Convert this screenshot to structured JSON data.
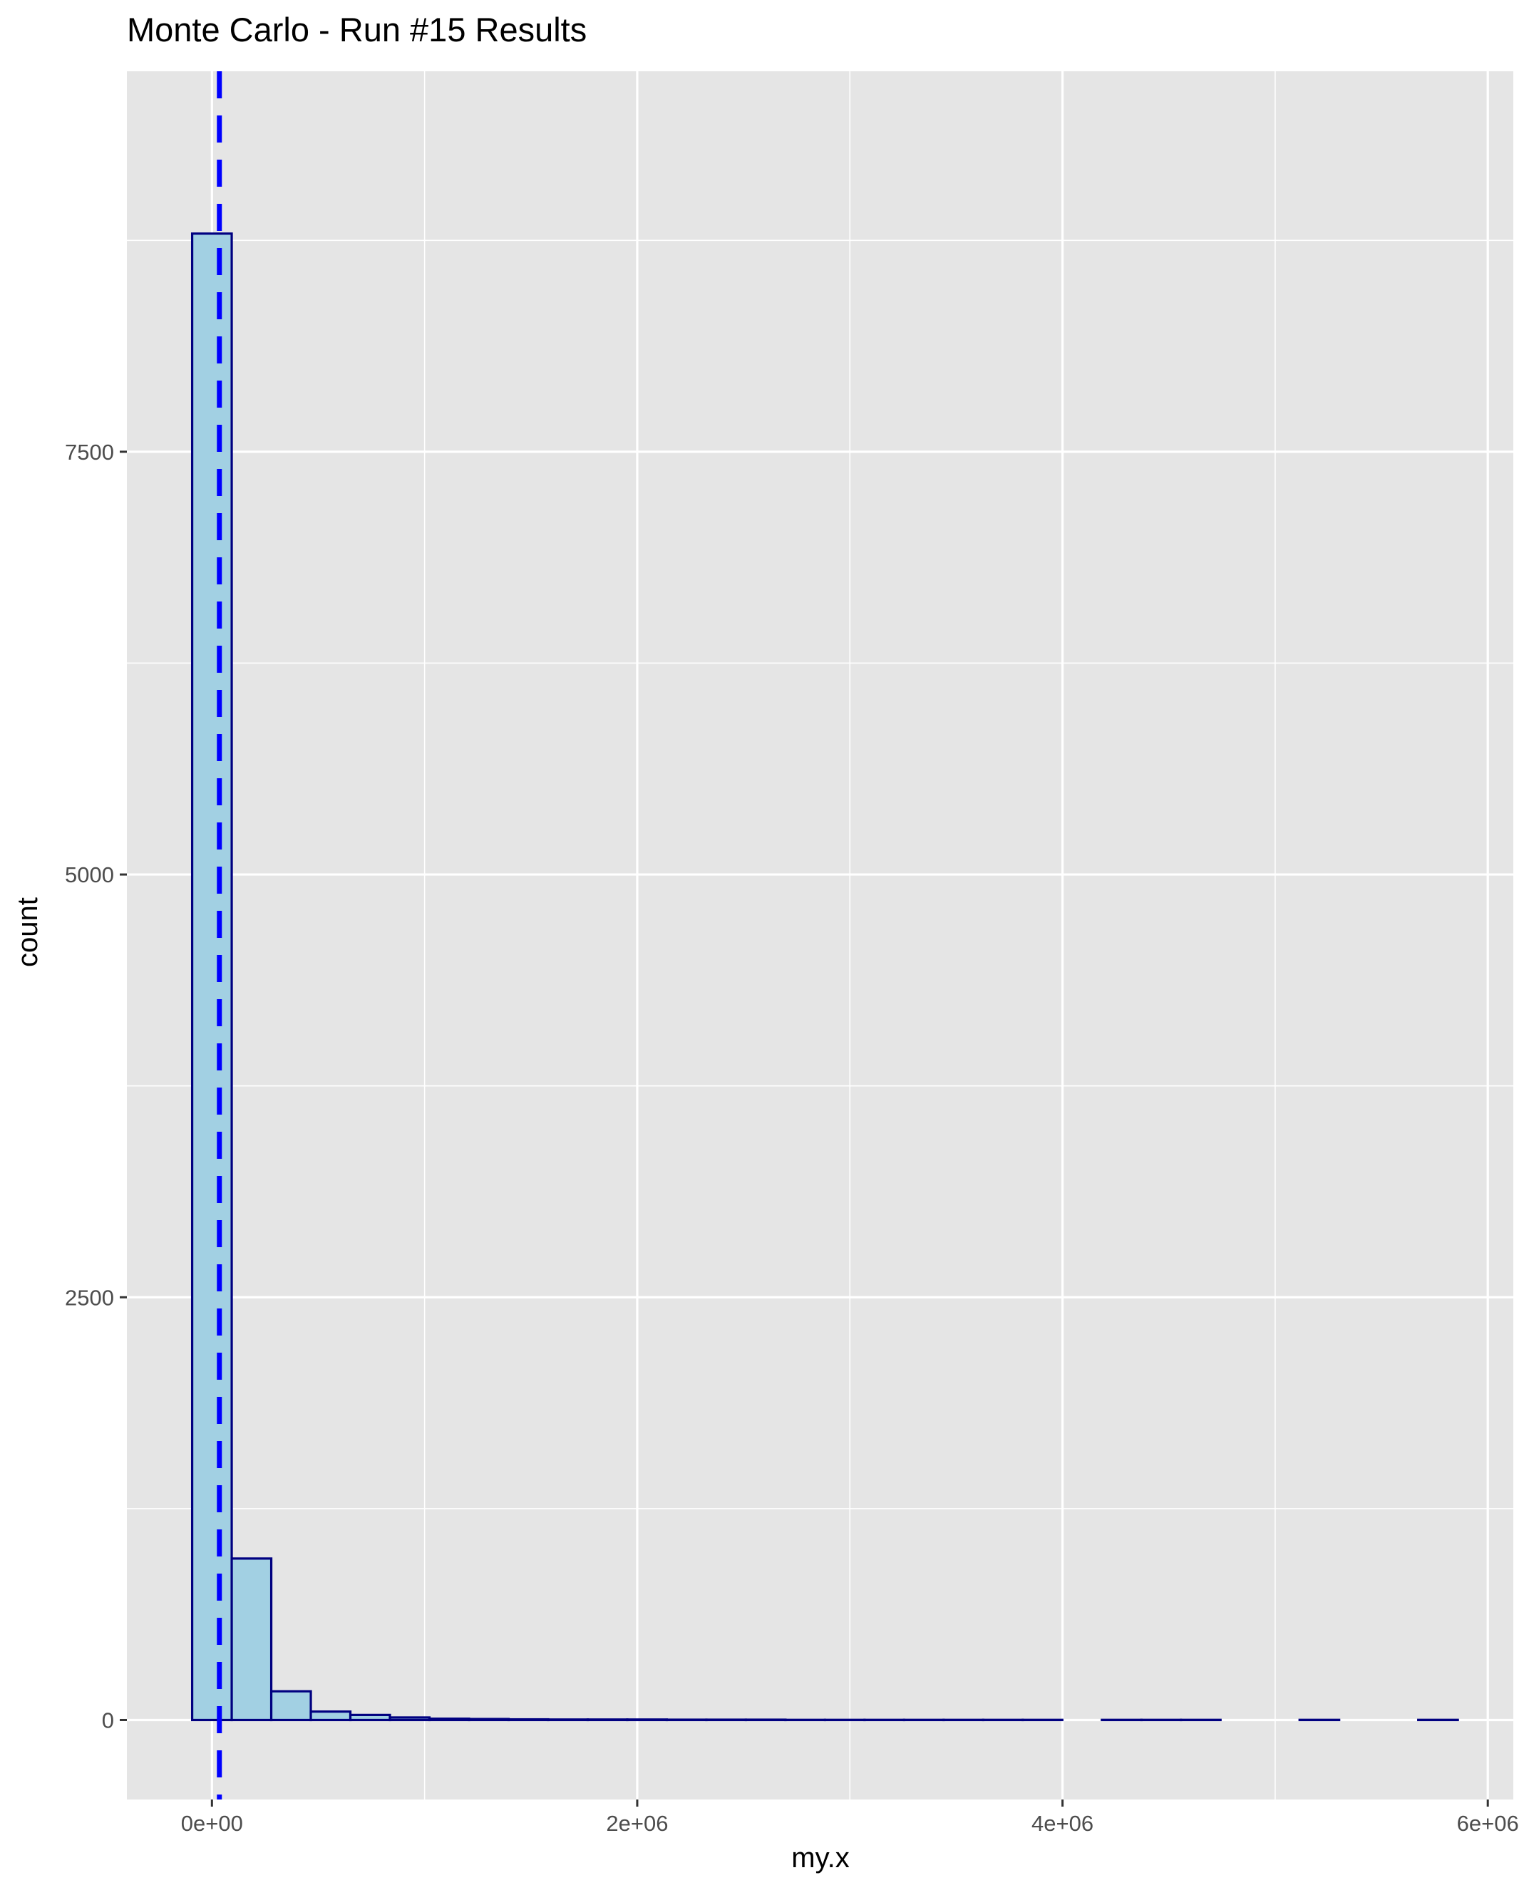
{
  "chart_data": {
    "type": "bar",
    "title": "Monte Carlo - Run #15 Results",
    "xlabel": "my.x",
    "ylabel": "count",
    "xlim": [
      -400000,
      6120000
    ],
    "ylim": [
      -470,
      9750
    ],
    "x_ticks": [
      0,
      2000000,
      4000000,
      6000000
    ],
    "x_tick_labels": [
      "0e+00",
      "2e+06",
      "4e+06",
      "6e+06"
    ],
    "y_ticks": [
      0,
      2500,
      5000,
      7500
    ],
    "y_tick_labels": [
      "0",
      "2500",
      "5000",
      "7500"
    ],
    "grid": true,
    "bin_width": 186000,
    "bins": [
      {
        "x0": -93000,
        "x1": 93000,
        "count": 8790
      },
      {
        "x0": 93000,
        "x1": 279000,
        "count": 955
      },
      {
        "x0": 279000,
        "x1": 465000,
        "count": 170
      },
      {
        "x0": 465000,
        "x1": 651000,
        "count": 50
      },
      {
        "x0": 651000,
        "x1": 837000,
        "count": 30
      },
      {
        "x0": 837000,
        "x1": 1023000,
        "count": 15
      },
      {
        "x0": 1023000,
        "x1": 1209000,
        "count": 8
      },
      {
        "x0": 1209000,
        "x1": 1395000,
        "count": 6
      },
      {
        "x0": 1395000,
        "x1": 1581000,
        "count": 4
      },
      {
        "x0": 1581000,
        "x1": 1767000,
        "count": 3
      },
      {
        "x0": 1767000,
        "x1": 1953000,
        "count": 3
      },
      {
        "x0": 1953000,
        "x1": 2139000,
        "count": 3
      },
      {
        "x0": 2139000,
        "x1": 2325000,
        "count": 2
      },
      {
        "x0": 2325000,
        "x1": 2511000,
        "count": 2
      },
      {
        "x0": 2511000,
        "x1": 2697000,
        "count": 2
      },
      {
        "x0": 2697000,
        "x1": 2883000,
        "count": 1
      },
      {
        "x0": 2883000,
        "x1": 3069000,
        "count": 1
      },
      {
        "x0": 3069000,
        "x1": 3255000,
        "count": 1
      },
      {
        "x0": 3255000,
        "x1": 3441000,
        "count": 1
      },
      {
        "x0": 3441000,
        "x1": 3627000,
        "count": 1
      },
      {
        "x0": 3627000,
        "x1": 3813000,
        "count": 1
      },
      {
        "x0": 3813000,
        "x1": 3999000,
        "count": 1
      },
      {
        "x0": 3999000,
        "x1": 4185000,
        "count": 0
      },
      {
        "x0": 4185000,
        "x1": 4371000,
        "count": 1
      },
      {
        "x0": 4371000,
        "x1": 4557000,
        "count": 1
      },
      {
        "x0": 4557000,
        "x1": 4743000,
        "count": 1
      },
      {
        "x0": 4743000,
        "x1": 4929000,
        "count": 0
      },
      {
        "x0": 4929000,
        "x1": 5115000,
        "count": 0
      },
      {
        "x0": 5115000,
        "x1": 5301000,
        "count": 1
      },
      {
        "x0": 5301000,
        "x1": 5487000,
        "count": 0
      },
      {
        "x0": 5487000,
        "x1": 5673000,
        "count": 0
      },
      {
        "x0": 5673000,
        "x1": 5859000,
        "count": 1
      }
    ],
    "vline": {
      "x": 35000,
      "style": "dashed",
      "color": "#0000ff"
    },
    "colors": {
      "panel_background": "#e5e5e5",
      "grid_major": "#ffffff",
      "bar_fill": "#a2d0e3",
      "bar_outline": "#000080",
      "tick_mark": "#333333"
    }
  }
}
